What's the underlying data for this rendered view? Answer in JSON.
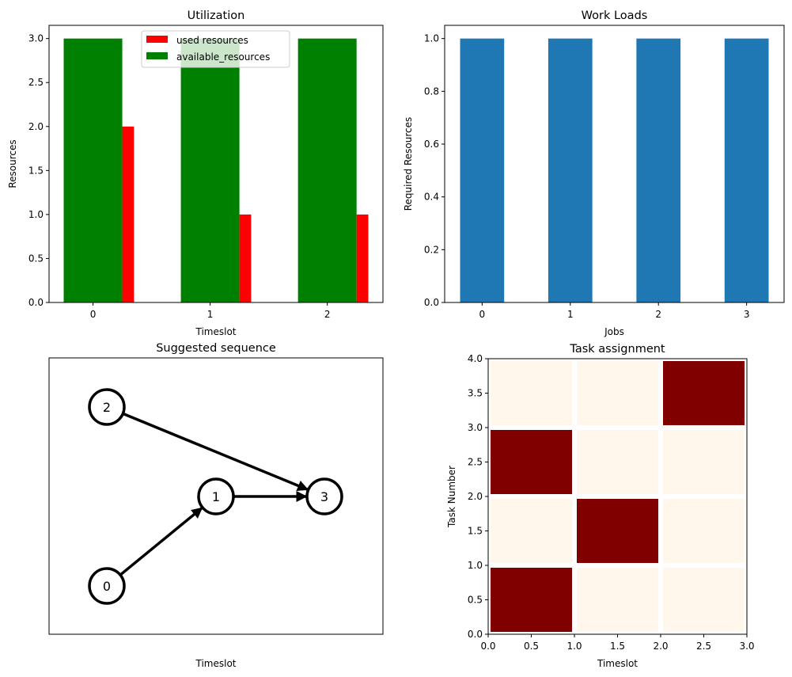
{
  "chart_data": [
    {
      "type": "bar",
      "title": "Utilization",
      "xlabel": "Timeslot",
      "ylabel": "Resources",
      "categories": [
        0,
        1,
        2
      ],
      "xticks": [
        "0",
        "1",
        "2"
      ],
      "yticks": [
        "0.0",
        "0.5",
        "1.0",
        "1.5",
        "2.0",
        "2.5",
        "3.0"
      ],
      "ylim": [
        0,
        3.15
      ],
      "xlim": [
        -0.375,
        2.475
      ],
      "legend": "top-center",
      "series": [
        {
          "name": "used resources",
          "values": [
            2,
            1,
            1
          ],
          "color": "#ff0000",
          "offset": 0.3,
          "width": 0.1
        },
        {
          "name": "available_resources",
          "values": [
            3,
            3,
            3
          ],
          "color": "#008000",
          "offset": 0,
          "width": 0.5
        }
      ]
    },
    {
      "type": "bar",
      "title": "Work Loads",
      "xlabel": "Jobs",
      "ylabel": "Required Resources",
      "categories": [
        0,
        1,
        2,
        3
      ],
      "xticks": [
        "0",
        "1",
        "2",
        "3"
      ],
      "yticks": [
        "0.0",
        "0.2",
        "0.4",
        "0.6",
        "0.8",
        "1.0"
      ],
      "ylim": [
        0,
        1.05
      ],
      "xlim": [
        -0.425,
        3.425
      ],
      "values": [
        1,
        1,
        1,
        1
      ],
      "color": "#1f77b4"
    },
    {
      "type": "graph",
      "title": "Suggested sequence",
      "xlabel": "Timeslot",
      "nodes": [
        "0",
        "1",
        "2",
        "3"
      ],
      "edges": [
        [
          "0",
          "1"
        ],
        [
          "1",
          "3"
        ],
        [
          "2",
          "3"
        ]
      ]
    },
    {
      "type": "heatmap",
      "title": "Task assignment",
      "xlabel": "Timeslot",
      "ylabel": "Task Number",
      "xlim": [
        0,
        3
      ],
      "ylim": [
        0,
        4
      ],
      "xticks": [
        "0.0",
        "0.5",
        "1.0",
        "1.5",
        "2.0",
        "2.5",
        "3.0"
      ],
      "yticks": [
        "0.0",
        "0.5",
        "1.0",
        "1.5",
        "2.0",
        "2.5",
        "3.0",
        "3.5",
        "4.0"
      ],
      "matrix": [
        [
          1,
          0,
          0
        ],
        [
          0,
          1,
          0
        ],
        [
          1,
          0,
          0
        ],
        [
          0,
          0,
          1
        ]
      ],
      "colors": {
        "on": "#800000",
        "off": "#fff7ec"
      }
    }
  ]
}
